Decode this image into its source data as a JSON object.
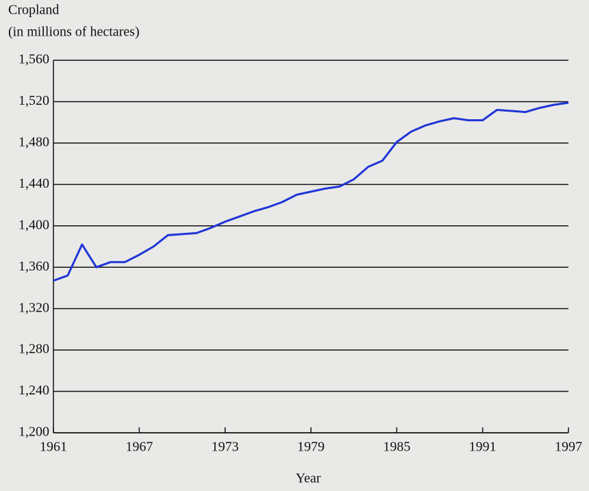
{
  "chart_data": {
    "type": "line",
    "ylabel_lines": [
      "Cropland",
      "(in millions of hectares)"
    ],
    "xlabel": "Year",
    "x": [
      1961,
      1962,
      1963,
      1964,
      1965,
      1966,
      1967,
      1968,
      1969,
      1970,
      1971,
      1972,
      1973,
      1974,
      1975,
      1976,
      1977,
      1978,
      1979,
      1980,
      1981,
      1982,
      1983,
      1984,
      1985,
      1986,
      1987,
      1988,
      1989,
      1990,
      1991,
      1992,
      1993,
      1994,
      1995,
      1996,
      1997
    ],
    "values": [
      1347,
      1352,
      1382,
      1360,
      1365,
      1365,
      1372,
      1380,
      1391,
      1392,
      1393,
      1398,
      1404,
      1409,
      1414,
      1418,
      1423,
      1430,
      1433,
      1436,
      1438,
      1445,
      1457,
      1463,
      1481,
      1491,
      1497,
      1501,
      1504,
      1502,
      1502,
      1512,
      1511,
      1510,
      1514,
      1517,
      1519
    ],
    "color": "#1f35d6",
    "xlim": [
      1961,
      1997
    ],
    "xticks": [
      1961,
      1967,
      1973,
      1979,
      1985,
      1991,
      1997
    ],
    "ylim": [
      1200,
      1560
    ],
    "yticks": [
      {
        "value": 1200,
        "label": "1,200"
      },
      {
        "value": 1240,
        "label": "1,240"
      },
      {
        "value": 1280,
        "label": "1,280"
      },
      {
        "value": 1320,
        "label": "1,320"
      },
      {
        "value": 1360,
        "label": "1,360"
      },
      {
        "value": 1400,
        "label": "1,400"
      },
      {
        "value": 1440,
        "label": "1,440"
      },
      {
        "value": 1480,
        "label": "1,480"
      },
      {
        "value": 1520,
        "label": "1,520"
      },
      {
        "value": 1560,
        "label": "1,560"
      }
    ],
    "grid": true
  }
}
